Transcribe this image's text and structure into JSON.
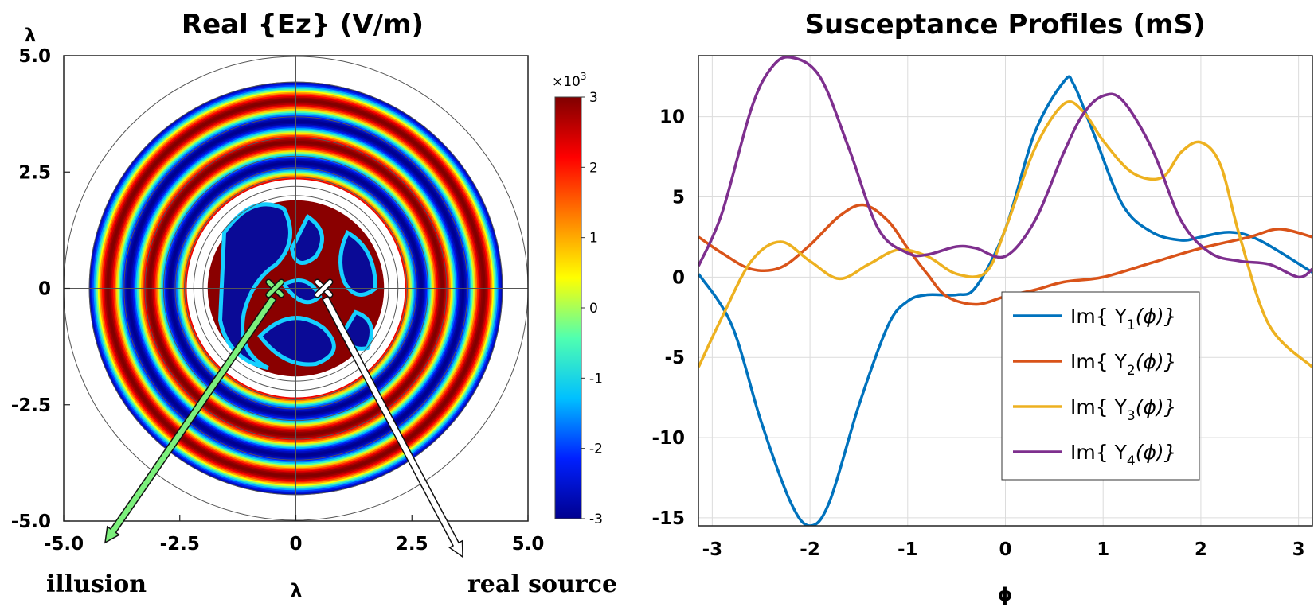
{
  "chart_data": [
    {
      "type": "heatmap",
      "title": "Real {Ez} (V/m)",
      "xlabel": "λ",
      "ylabel": "λ",
      "xlim": [
        -5.0,
        5.0
      ],
      "ylim": [
        -5.0,
        5.0
      ],
      "xticks": [
        "-5.0",
        "-2.5",
        "0",
        "2.5",
        "5.0"
      ],
      "xtick_values": [
        -5.0,
        -2.5,
        0,
        2.5,
        5.0
      ],
      "yticks": [
        "5.0",
        "2.5",
        "0",
        "-2.5",
        "-5.0"
      ],
      "ytick_values": [
        5.0,
        2.5,
        0,
        -2.5,
        -5.0
      ],
      "colorbar": {
        "exponent_label": "×10",
        "exponent_power": "3",
        "range": [
          -3,
          3
        ],
        "ticks": [
          "3",
          "2",
          "1",
          "0",
          "-1",
          "-2",
          "-3"
        ],
        "tick_values": [
          3,
          2,
          1,
          0,
          -1,
          -2,
          -3
        ],
        "colormap": [
          "#00008f",
          "#0020ff",
          "#00c0ff",
          "#50ffb0",
          "#ffff00",
          "#ff8000",
          "#ff0000",
          "#800000"
        ]
      },
      "field_regions": {
        "outer_annulus_radius_range": [
          2.35,
          4.45
        ],
        "inner_disk_radius": 1.9,
        "concentric_rings": [
          2.0,
          2.2,
          2.4,
          2.6,
          2.85,
          3.25,
          3.7,
          4.45,
          5.0
        ]
      },
      "markers": [
        {
          "name": "illusion",
          "x": -0.45,
          "y": 0.0,
          "color": "#7cf07c",
          "label": "illusion"
        },
        {
          "name": "real-source",
          "x": 0.6,
          "y": 0.0,
          "color": "#ffffff",
          "label": "real source"
        }
      ]
    },
    {
      "type": "line",
      "title": "Susceptance Profiles (mS)",
      "xlabel": "ϕ",
      "ylabel": "",
      "xlim": [
        -3.14159,
        3.14159
      ],
      "ylim": [
        -15.5,
        13.8
      ],
      "xticks": [
        "-3",
        "-2",
        "-1",
        "0",
        "1",
        "2",
        "3"
      ],
      "xtick_values": [
        -3,
        -2,
        -1,
        0,
        1,
        2,
        3
      ],
      "yticks": [
        "10",
        "5",
        "0",
        "-5",
        "-10",
        "-15"
      ],
      "ytick_values": [
        10,
        5,
        0,
        -5,
        -10,
        -15
      ],
      "grid": true,
      "legend_position": "bottom-right",
      "series": [
        {
          "name": "Im{Y_1(ϕ)}",
          "legend_prefix": "Im{ Y",
          "legend_sub": "1",
          "legend_suffix": "(ϕ)}",
          "color": "#0072BD",
          "x": [
            -3.14,
            -2.8,
            -2.5,
            -2.2,
            -2.0,
            -1.8,
            -1.5,
            -1.2,
            -1.0,
            -0.8,
            -0.5,
            -0.3,
            0.0,
            0.3,
            0.6,
            0.7,
            0.9,
            1.2,
            1.5,
            1.8,
            2.0,
            2.3,
            2.6,
            3.14
          ],
          "y": [
            0.2,
            -3.0,
            -9.0,
            -14.0,
            -15.5,
            -14.0,
            -8.0,
            -3.0,
            -1.5,
            -1.1,
            -1.1,
            -0.6,
            3.0,
            9.0,
            12.2,
            12.0,
            9.0,
            4.5,
            2.8,
            2.3,
            2.5,
            2.8,
            2.3,
            0.3
          ]
        },
        {
          "name": "Im{Y_2(ϕ)}",
          "legend_prefix": "Im{ Y",
          "legend_sub": "2",
          "legend_suffix": "(ϕ)}",
          "color": "#D95319",
          "x": [
            -3.14,
            -2.9,
            -2.6,
            -2.3,
            -2.0,
            -1.7,
            -1.45,
            -1.2,
            -1.0,
            -0.8,
            -0.6,
            -0.3,
            0.0,
            0.3,
            0.6,
            1.0,
            1.5,
            2.0,
            2.5,
            2.8,
            3.14
          ],
          "y": [
            2.5,
            1.5,
            0.5,
            0.6,
            2.0,
            3.8,
            4.5,
            3.5,
            1.8,
            0.2,
            -1.2,
            -1.7,
            -1.2,
            -0.8,
            -0.3,
            0.0,
            0.9,
            1.8,
            2.5,
            3.0,
            2.5
          ]
        },
        {
          "name": "Im{Y_3(ϕ)}",
          "legend_prefix": "Im{ Y",
          "legend_sub": "3",
          "legend_suffix": "(ϕ)}",
          "color": "#EDB120",
          "x": [
            -3.14,
            -2.9,
            -2.6,
            -2.3,
            -2.0,
            -1.7,
            -1.4,
            -1.1,
            -0.8,
            -0.5,
            -0.2,
            0.0,
            0.3,
            0.6,
            0.8,
            1.0,
            1.3,
            1.6,
            1.8,
            2.0,
            2.2,
            2.4,
            2.7,
            3.14
          ],
          "y": [
            -5.6,
            -2.5,
            1.0,
            2.2,
            1.0,
            -0.1,
            0.8,
            1.7,
            1.3,
            0.2,
            0.3,
            3.0,
            8.0,
            10.8,
            10.3,
            8.5,
            6.5,
            6.2,
            7.8,
            8.4,
            7.0,
            2.5,
            -3.0,
            -5.6
          ]
        },
        {
          "name": "Im{Y_4(ϕ)}",
          "legend_prefix": "Im{ Y",
          "legend_sub": "4",
          "legend_suffix": "(ϕ)}",
          "color": "#7E2F8E",
          "x": [
            -3.14,
            -2.9,
            -2.6,
            -2.4,
            -2.2,
            -1.9,
            -1.6,
            -1.3,
            -1.0,
            -0.8,
            -0.5,
            -0.3,
            0.0,
            0.3,
            0.6,
            0.8,
            1.0,
            1.2,
            1.5,
            1.8,
            2.1,
            2.4,
            2.7,
            3.0,
            3.14
          ],
          "y": [
            0.7,
            4.0,
            10.5,
            13.0,
            13.7,
            12.5,
            8.0,
            3.0,
            1.5,
            1.4,
            1.9,
            1.8,
            1.3,
            3.5,
            7.8,
            10.2,
            11.3,
            11.0,
            8.0,
            3.5,
            1.5,
            1.0,
            0.8,
            0.0,
            0.5
          ]
        }
      ]
    }
  ]
}
